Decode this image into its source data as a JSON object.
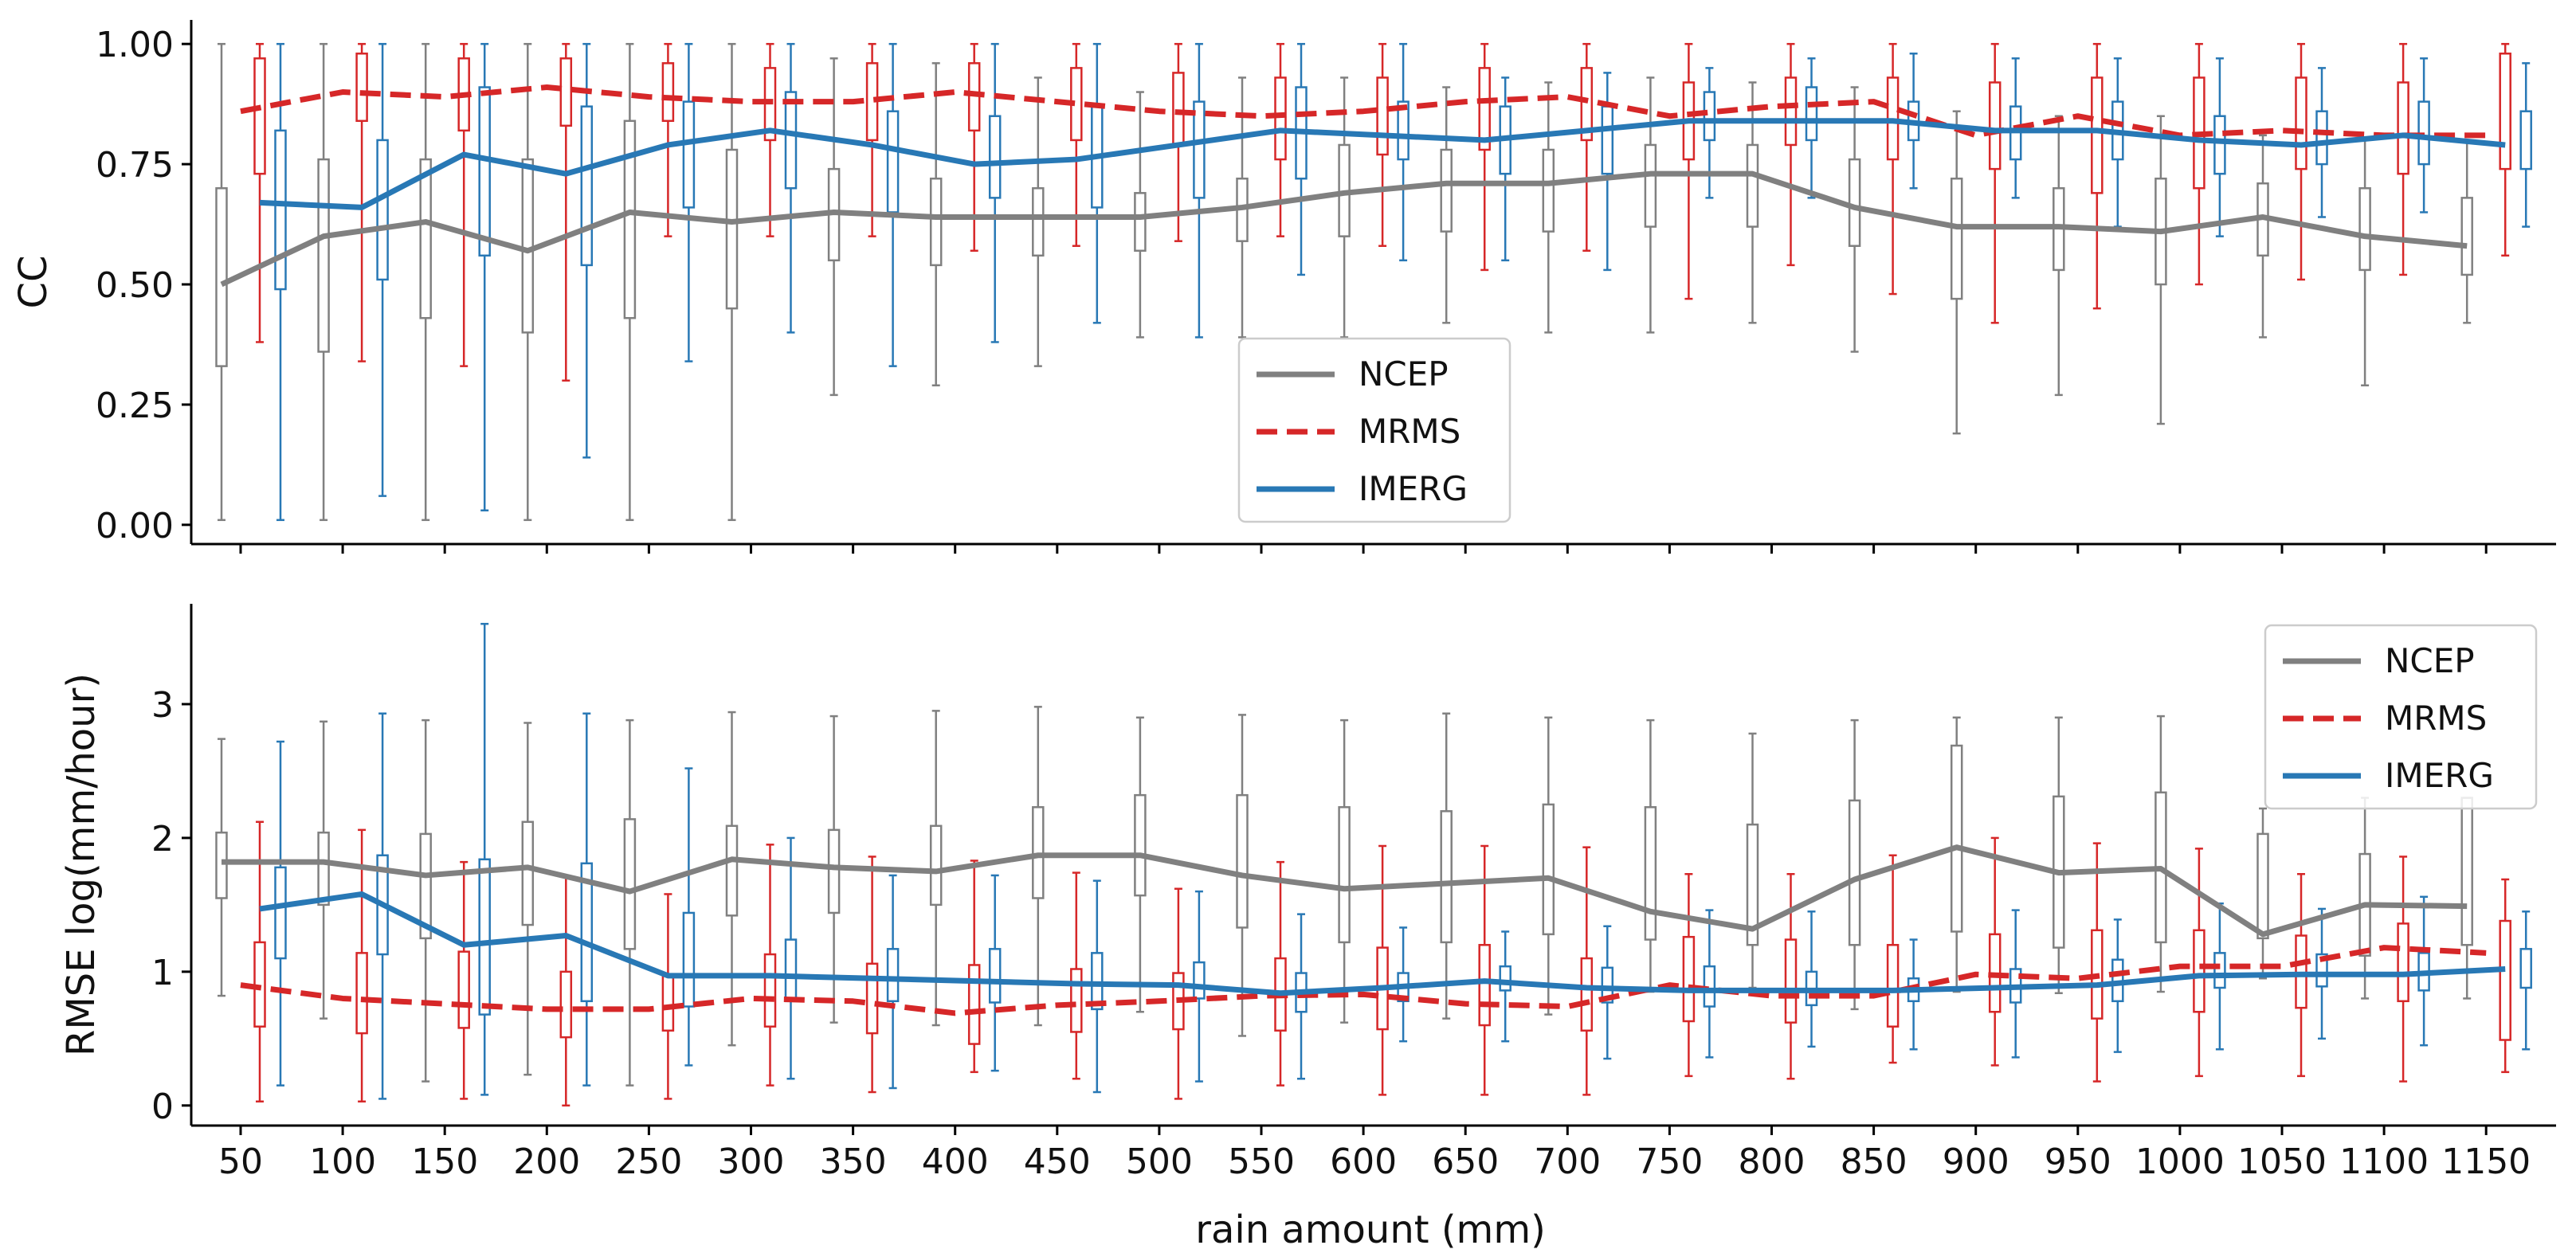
{
  "chart_data": [
    {
      "type": "box+line",
      "panel": "top",
      "title": "",
      "xlabel": "",
      "ylabel": "CC",
      "ylim": [
        -0.04,
        1.05
      ],
      "yticks": [
        0.0,
        0.25,
        0.5,
        0.75,
        1.0
      ],
      "ytick_labels": [
        "0.00",
        "0.25",
        "0.50",
        "0.75",
        "1.00"
      ],
      "legend": {
        "position": "lower-center",
        "entries": [
          "NCEP",
          "MRMS",
          "IMERG"
        ]
      },
      "series": [
        {
          "name": "NCEP",
          "color": "#808080",
          "style": "solid",
          "line": [
            0.5,
            0.6,
            0.63,
            0.57,
            0.65,
            0.63,
            0.65,
            0.64,
            0.64,
            0.64,
            0.66,
            0.69,
            0.71,
            0.71,
            0.73,
            0.73,
            0.66,
            0.62,
            0.62,
            0.61,
            0.64,
            0.6,
            0.58
          ],
          "boxes": [
            [
              0.01,
              0.33,
              0.7,
              1.0
            ],
            [
              0.01,
              0.36,
              0.76,
              1.0
            ],
            [
              0.01,
              0.43,
              0.76,
              1.0
            ],
            [
              0.01,
              0.4,
              0.76,
              1.0
            ],
            [
              0.01,
              0.43,
              0.84,
              1.0
            ],
            [
              0.01,
              0.45,
              0.78,
              1.0
            ],
            [
              0.27,
              0.55,
              0.74,
              0.97
            ],
            [
              0.29,
              0.54,
              0.72,
              0.96
            ],
            [
              0.33,
              0.56,
              0.7,
              0.93
            ],
            [
              0.39,
              0.57,
              0.69,
              0.9
            ],
            [
              0.39,
              0.59,
              0.72,
              0.93
            ],
            [
              0.39,
              0.6,
              0.79,
              0.93
            ],
            [
              0.42,
              0.61,
              0.78,
              0.91
            ],
            [
              0.4,
              0.61,
              0.78,
              0.92
            ],
            [
              0.4,
              0.62,
              0.79,
              0.93
            ],
            [
              0.42,
              0.62,
              0.79,
              0.92
            ],
            [
              0.36,
              0.58,
              0.76,
              0.91
            ],
            [
              0.19,
              0.47,
              0.72,
              0.86
            ],
            [
              0.27,
              0.53,
              0.7,
              0.85
            ],
            [
              0.21,
              0.5,
              0.72,
              0.85
            ],
            [
              0.39,
              0.56,
              0.71,
              0.81
            ],
            [
              0.29,
              0.53,
              0.7,
              0.8
            ],
            [
              0.42,
              0.52,
              0.68,
              0.8
            ]
          ]
        },
        {
          "name": "MRMS",
          "color": "#d62728",
          "style": "dashed",
          "line": [
            0.86,
            0.9,
            0.89,
            0.91,
            0.89,
            0.88,
            0.88,
            0.9,
            0.88,
            0.86,
            0.85,
            0.86,
            0.88,
            0.89,
            0.85,
            0.87,
            0.88,
            0.81,
            0.85,
            0.81,
            0.82,
            0.81,
            0.81
          ],
          "boxes": [
            [
              0.38,
              0.73,
              0.97,
              1.0
            ],
            [
              0.34,
              0.84,
              0.98,
              1.0
            ],
            [
              0.33,
              0.82,
              0.97,
              1.0
            ],
            [
              0.3,
              0.83,
              0.97,
              1.0
            ],
            [
              0.6,
              0.84,
              0.96,
              1.0
            ],
            [
              0.6,
              0.8,
              0.95,
              1.0
            ],
            [
              0.6,
              0.8,
              0.96,
              1.0
            ],
            [
              0.57,
              0.82,
              0.96,
              1.0
            ],
            [
              0.58,
              0.8,
              0.95,
              1.0
            ],
            [
              0.59,
              0.79,
              0.94,
              1.0
            ],
            [
              0.6,
              0.76,
              0.93,
              1.0
            ],
            [
              0.58,
              0.77,
              0.93,
              1.0
            ],
            [
              0.53,
              0.78,
              0.95,
              1.0
            ],
            [
              0.57,
              0.8,
              0.95,
              1.0
            ],
            [
              0.47,
              0.76,
              0.92,
              1.0
            ],
            [
              0.54,
              0.79,
              0.93,
              1.0
            ],
            [
              0.48,
              0.76,
              0.93,
              1.0
            ],
            [
              0.42,
              0.74,
              0.92,
              1.0
            ],
            [
              0.45,
              0.69,
              0.93,
              1.0
            ],
            [
              0.5,
              0.7,
              0.93,
              1.0
            ],
            [
              0.51,
              0.74,
              0.93,
              1.0
            ],
            [
              0.52,
              0.73,
              0.92,
              1.0
            ],
            [
              0.56,
              0.74,
              0.98,
              1.0
            ]
          ]
        },
        {
          "name": "IMERG",
          "color": "#2878b5",
          "style": "solid",
          "line": [
            0.67,
            0.66,
            0.77,
            0.73,
            0.79,
            0.82,
            0.79,
            0.75,
            0.76,
            0.79,
            0.82,
            0.81,
            0.8,
            0.82,
            0.84,
            0.84,
            0.84,
            0.82,
            0.82,
            0.8,
            0.79,
            0.81,
            0.79
          ],
          "boxes": [
            [
              0.01,
              0.49,
              0.82,
              1.0
            ],
            [
              0.06,
              0.51,
              0.8,
              1.0
            ],
            [
              0.03,
              0.56,
              0.91,
              1.0
            ],
            [
              0.14,
              0.54,
              0.87,
              1.0
            ],
            [
              0.34,
              0.66,
              0.88,
              1.0
            ],
            [
              0.4,
              0.7,
              0.9,
              1.0
            ],
            [
              0.33,
              0.65,
              0.86,
              1.0
            ],
            [
              0.38,
              0.68,
              0.85,
              1.0
            ],
            [
              0.42,
              0.66,
              0.87,
              1.0
            ],
            [
              0.39,
              0.68,
              0.88,
              1.0
            ],
            [
              0.52,
              0.72,
              0.91,
              1.0
            ],
            [
              0.55,
              0.76,
              0.88,
              1.0
            ],
            [
              0.55,
              0.73,
              0.87,
              0.93
            ],
            [
              0.53,
              0.73,
              0.87,
              0.94
            ],
            [
              0.68,
              0.8,
              0.9,
              0.95
            ],
            [
              0.68,
              0.8,
              0.91,
              0.97
            ],
            [
              0.7,
              0.8,
              0.88,
              0.98
            ],
            [
              0.68,
              0.76,
              0.87,
              0.97
            ],
            [
              0.62,
              0.76,
              0.88,
              0.97
            ],
            [
              0.6,
              0.73,
              0.85,
              0.97
            ],
            [
              0.64,
              0.75,
              0.86,
              0.95
            ],
            [
              0.65,
              0.75,
              0.88,
              0.97
            ],
            [
              0.62,
              0.74,
              0.86,
              0.96
            ]
          ]
        }
      ]
    },
    {
      "type": "box+line",
      "panel": "bottom",
      "title": "",
      "xlabel": "rain amount (mm)",
      "ylabel": "RMSE log(mm/hour)",
      "ylim": [
        -0.15,
        3.75
      ],
      "yticks": [
        0,
        1,
        2,
        3
      ],
      "ytick_labels": [
        "0",
        "1",
        "2",
        "3"
      ],
      "legend": {
        "position": "top-right",
        "entries": [
          "NCEP",
          "MRMS",
          "IMERG"
        ]
      },
      "series": [
        {
          "name": "NCEP",
          "color": "#808080",
          "style": "solid",
          "line": [
            1.82,
            1.82,
            1.72,
            1.78,
            1.6,
            1.84,
            1.78,
            1.75,
            1.87,
            1.87,
            1.72,
            1.62,
            1.66,
            1.7,
            1.45,
            1.32,
            1.69,
            1.93,
            1.74,
            1.77,
            1.28,
            1.5,
            1.49
          ],
          "boxes": [
            [
              0.82,
              1.55,
              2.04,
              2.74
            ],
            [
              0.65,
              1.5,
              2.04,
              2.87
            ],
            [
              0.18,
              1.25,
              2.03,
              2.88
            ],
            [
              0.23,
              1.35,
              2.12,
              2.86
            ],
            [
              0.15,
              1.17,
              2.14,
              2.88
            ],
            [
              0.45,
              1.42,
              2.09,
              2.94
            ],
            [
              0.62,
              1.44,
              2.06,
              2.91
            ],
            [
              0.6,
              1.5,
              2.09,
              2.95
            ],
            [
              0.6,
              1.55,
              2.23,
              2.98
            ],
            [
              0.7,
              1.57,
              2.32,
              2.9
            ],
            [
              0.52,
              1.33,
              2.32,
              2.92
            ],
            [
              0.62,
              1.22,
              2.23,
              2.88
            ],
            [
              0.65,
              1.22,
              2.2,
              2.93
            ],
            [
              0.68,
              1.28,
              2.25,
              2.9
            ],
            [
              0.85,
              1.24,
              2.23,
              2.88
            ],
            [
              0.88,
              1.2,
              2.1,
              2.78
            ],
            [
              0.72,
              1.2,
              2.28,
              2.88
            ],
            [
              0.85,
              1.3,
              2.69,
              2.9
            ],
            [
              0.84,
              1.18,
              2.31,
              2.9
            ],
            [
              0.85,
              1.22,
              2.34,
              2.91
            ],
            [
              0.95,
              1.25,
              2.03,
              2.22
            ],
            [
              0.8,
              1.12,
              1.88,
              2.3
            ],
            [
              0.8,
              1.2,
              2.3,
              2.3
            ]
          ]
        },
        {
          "name": "MRMS",
          "color": "#d62728",
          "style": "dashed",
          "line": [
            0.9,
            0.8,
            0.76,
            0.72,
            0.72,
            0.8,
            0.78,
            0.69,
            0.75,
            0.78,
            0.82,
            0.83,
            0.76,
            0.74,
            0.9,
            0.82,
            0.82,
            0.98,
            0.95,
            1.04,
            1.04,
            1.18,
            1.14
          ],
          "boxes": [
            [
              0.03,
              0.59,
              1.22,
              2.12
            ],
            [
              0.03,
              0.54,
              1.14,
              2.06
            ],
            [
              0.05,
              0.58,
              1.15,
              1.82
            ],
            [
              0.0,
              0.51,
              1.0,
              1.71
            ],
            [
              0.05,
              0.56,
              0.98,
              1.58
            ],
            [
              0.15,
              0.59,
              1.13,
              1.95
            ],
            [
              0.1,
              0.54,
              1.06,
              1.86
            ],
            [
              0.25,
              0.46,
              1.05,
              1.83
            ],
            [
              0.2,
              0.55,
              1.02,
              1.74
            ],
            [
              0.05,
              0.57,
              0.99,
              1.62
            ],
            [
              0.15,
              0.56,
              1.1,
              1.82
            ],
            [
              0.08,
              0.57,
              1.18,
              1.94
            ],
            [
              0.08,
              0.6,
              1.2,
              1.94
            ],
            [
              0.08,
              0.56,
              1.1,
              1.93
            ],
            [
              0.22,
              0.63,
              1.26,
              1.73
            ],
            [
              0.2,
              0.62,
              1.24,
              1.73
            ],
            [
              0.32,
              0.59,
              1.2,
              1.87
            ],
            [
              0.3,
              0.7,
              1.28,
              2.0
            ],
            [
              0.18,
              0.65,
              1.31,
              1.96
            ],
            [
              0.22,
              0.7,
              1.31,
              1.92
            ],
            [
              0.22,
              0.73,
              1.27,
              1.73
            ],
            [
              0.18,
              0.78,
              1.36,
              1.86
            ],
            [
              0.25,
              0.49,
              1.38,
              1.69
            ]
          ]
        },
        {
          "name": "IMERG",
          "color": "#2878b5",
          "style": "solid",
          "line": [
            1.47,
            1.58,
            1.2,
            1.27,
            0.97,
            0.97,
            0.95,
            0.93,
            0.91,
            0.9,
            0.84,
            0.88,
            0.93,
            0.88,
            0.86,
            0.86,
            0.86,
            0.88,
            0.9,
            0.97,
            0.98,
            0.98,
            1.02
          ],
          "boxes": [
            [
              0.15,
              1.1,
              1.78,
              2.72
            ],
            [
              0.05,
              1.13,
              1.87,
              2.93
            ],
            [
              0.08,
              0.68,
              1.84,
              3.6
            ],
            [
              0.15,
              0.78,
              1.81,
              2.93
            ],
            [
              0.3,
              0.74,
              1.44,
              2.52
            ],
            [
              0.2,
              0.78,
              1.24,
              2.0
            ],
            [
              0.13,
              0.78,
              1.17,
              1.72
            ],
            [
              0.26,
              0.77,
              1.17,
              1.72
            ],
            [
              0.1,
              0.72,
              1.14,
              1.68
            ],
            [
              0.18,
              0.8,
              1.07,
              1.6
            ],
            [
              0.2,
              0.7,
              0.99,
              1.43
            ],
            [
              0.48,
              0.78,
              0.99,
              1.33
            ],
            [
              0.48,
              0.86,
              1.04,
              1.3
            ],
            [
              0.35,
              0.77,
              1.03,
              1.34
            ],
            [
              0.36,
              0.74,
              1.04,
              1.46
            ],
            [
              0.44,
              0.75,
              1.0,
              1.45
            ],
            [
              0.42,
              0.78,
              0.95,
              1.24
            ],
            [
              0.36,
              0.77,
              1.02,
              1.46
            ],
            [
              0.4,
              0.78,
              1.09,
              1.39
            ],
            [
              0.42,
              0.88,
              1.14,
              1.51
            ],
            [
              0.5,
              0.89,
              1.13,
              1.47
            ],
            [
              0.45,
              0.86,
              1.14,
              1.56
            ],
            [
              0.42,
              0.88,
              1.17,
              1.45
            ]
          ]
        }
      ]
    }
  ],
  "x_categories": [
    "50",
    "100",
    "150",
    "200",
    "250",
    "300",
    "350",
    "400",
    "450",
    "500",
    "550",
    "600",
    "650",
    "700",
    "750",
    "800",
    "850",
    "900",
    "950",
    "1000",
    "1050",
    "1100",
    "1150"
  ]
}
